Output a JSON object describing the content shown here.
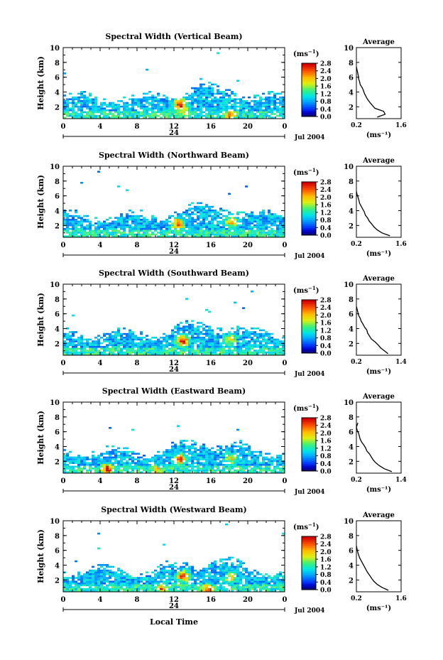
{
  "figure": {
    "month_label": "Jul 2004",
    "day_label": "24",
    "xlabel": "Local Time",
    "unit_label": "(ms",
    "unit_exp": "−1",
    "unit_close": ")"
  },
  "chart_data": [
    {
      "type": "heatmap",
      "title": "Spectral Width (Vertical Beam)",
      "xlabel": "Local Time",
      "ylabel": "Height (km)",
      "xlim": [
        0,
        24
      ],
      "ylim": [
        0.4,
        10
      ],
      "xticks": [
        0,
        4,
        8,
        12,
        16,
        20
      ],
      "yticks": [
        2,
        4,
        6,
        8,
        10
      ],
      "colorbar": {
        "ticks": [
          "0.0",
          "0.4",
          "0.8",
          "1.2",
          "1.6",
          "2.0",
          "2.4",
          "2.8"
        ],
        "range": [
          0,
          2.8
        ]
      },
      "hotspots": [
        {
          "t": 12.5,
          "h": 2.4,
          "v": 2.6
        },
        {
          "t": 18.0,
          "h": 1.0,
          "v": 2.3
        },
        {
          "t": 13.0,
          "h": 1.6,
          "v": 1.8
        }
      ],
      "average": {
        "title": "Average",
        "xlabel": "(ms⁻¹)",
        "xlim": [
          0.2,
          1.6
        ],
        "xticks": [
          "0.2",
          "1.6"
        ],
        "yticks": [
          2,
          4,
          6,
          8,
          10
        ],
        "profile": [
          [
            0.85,
            0.6
          ],
          [
            1.1,
            1.0
          ],
          [
            1.05,
            1.4
          ],
          [
            0.78,
            1.8
          ],
          [
            0.7,
            2.2
          ],
          [
            0.62,
            2.6
          ],
          [
            0.55,
            3.0
          ],
          [
            0.5,
            3.4
          ],
          [
            0.45,
            3.8
          ],
          [
            0.42,
            4.2
          ],
          [
            0.38,
            4.6
          ],
          [
            0.32,
            5.0
          ],
          [
            0.3,
            5.4
          ],
          [
            0.27,
            5.8
          ],
          [
            0.26,
            6.2
          ],
          [
            0.24,
            6.6
          ],
          [
            0.22,
            7.0
          ],
          [
            0.2,
            7.4
          ]
        ]
      }
    },
    {
      "type": "heatmap",
      "title": "Spectral Width (Northward Beam)",
      "xlabel": "Local Time",
      "ylabel": "Height (km)",
      "xlim": [
        0,
        24
      ],
      "ylim": [
        0.4,
        10
      ],
      "xticks": [
        0,
        4,
        8,
        12,
        16,
        20
      ],
      "yticks": [
        2,
        4,
        6,
        8,
        10
      ],
      "colorbar": {
        "ticks": [
          "0.0",
          "0.4",
          "0.8",
          "1.2",
          "1.6",
          "2.0",
          "2.4",
          "2.8"
        ],
        "range": [
          0,
          2.8
        ]
      },
      "hotspots": [
        {
          "t": 12.3,
          "h": 2.3,
          "v": 2.5
        },
        {
          "t": 18.0,
          "h": 2.6,
          "v": 1.9
        }
      ],
      "average": {
        "title": "Average",
        "xlabel": "(ms⁻¹)",
        "xlim": [
          0.2,
          1.6
        ],
        "xticks": [
          "0.2",
          "1.6"
        ],
        "yticks": [
          2,
          4,
          6,
          8,
          10
        ],
        "profile": [
          [
            1.25,
            0.6
          ],
          [
            1.0,
            1.0
          ],
          [
            0.85,
            1.4
          ],
          [
            0.75,
            1.8
          ],
          [
            0.68,
            2.2
          ],
          [
            0.6,
            2.6
          ],
          [
            0.55,
            3.0
          ],
          [
            0.48,
            3.4
          ],
          [
            0.45,
            3.8
          ],
          [
            0.4,
            4.2
          ],
          [
            0.35,
            4.6
          ],
          [
            0.3,
            5.0
          ],
          [
            0.28,
            5.4
          ],
          [
            0.25,
            5.8
          ],
          [
            0.22,
            6.2
          ],
          [
            0.2,
            6.6
          ]
        ]
      }
    },
    {
      "type": "heatmap",
      "title": "Spectral Width (Southward Beam)",
      "xlabel": "Local Time",
      "ylabel": "Height (km)",
      "xlim": [
        0,
        24
      ],
      "ylim": [
        0.4,
        10
      ],
      "xticks": [
        0,
        4,
        8,
        12,
        16,
        20
      ],
      "yticks": [
        2,
        4,
        6,
        8,
        10
      ],
      "colorbar": {
        "ticks": [
          "0.0",
          "0.4",
          "0.8",
          "1.2",
          "1.6",
          "2.0",
          "2.4",
          "2.8"
        ],
        "range": [
          0,
          2.8
        ]
      },
      "hotspots": [
        {
          "t": 12.8,
          "h": 2.5,
          "v": 2.6
        },
        {
          "t": 18.0,
          "h": 2.7,
          "v": 1.9
        }
      ],
      "average": {
        "title": "Average",
        "xlabel": "(ms⁻¹)",
        "xlim": [
          0.2,
          1.4
        ],
        "xticks": [
          "0.2",
          "1.4"
        ],
        "yticks": [
          2,
          4,
          6,
          8,
          10
        ],
        "profile": [
          [
            1.05,
            0.6
          ],
          [
            0.95,
            1.0
          ],
          [
            0.85,
            1.4
          ],
          [
            0.78,
            1.8
          ],
          [
            0.7,
            2.2
          ],
          [
            0.6,
            2.6
          ],
          [
            0.55,
            3.0
          ],
          [
            0.5,
            3.4
          ],
          [
            0.48,
            3.8
          ],
          [
            0.42,
            4.2
          ],
          [
            0.38,
            4.6
          ],
          [
            0.33,
            5.0
          ],
          [
            0.3,
            5.4
          ],
          [
            0.26,
            5.8
          ],
          [
            0.24,
            6.2
          ],
          [
            0.22,
            6.6
          ],
          [
            0.2,
            7.0
          ]
        ]
      }
    },
    {
      "type": "heatmap",
      "title": "Spectral Width (Eastward Beam)",
      "xlabel": "Local Time",
      "ylabel": "Height (km)",
      "xlim": [
        0,
        24
      ],
      "ylim": [
        0.4,
        10
      ],
      "xticks": [
        0,
        4,
        8,
        12,
        16,
        20
      ],
      "yticks": [
        2,
        4,
        6,
        8,
        10
      ],
      "colorbar": {
        "ticks": [
          "0.0",
          "0.4",
          "0.8",
          "1.2",
          "1.6",
          "2.0",
          "2.4",
          "2.8"
        ],
        "range": [
          0,
          2.8
        ]
      },
      "hotspots": [
        {
          "t": 4.6,
          "h": 1.0,
          "v": 2.7
        },
        {
          "t": 12.5,
          "h": 2.4,
          "v": 2.2
        },
        {
          "t": 18.0,
          "h": 2.5,
          "v": 1.7
        },
        {
          "t": 10.0,
          "h": 0.9,
          "v": 1.9
        }
      ],
      "average": {
        "title": "Average",
        "xlabel": "(ms⁻¹)",
        "xlim": [
          0.2,
          1.4
        ],
        "xticks": [
          "0.2",
          "1.4"
        ],
        "yticks": [
          2,
          4,
          6,
          8,
          10
        ],
        "profile": [
          [
            1.15,
            0.6
          ],
          [
            0.95,
            1.0
          ],
          [
            0.82,
            1.4
          ],
          [
            0.72,
            1.8
          ],
          [
            0.65,
            2.2
          ],
          [
            0.6,
            2.6
          ],
          [
            0.55,
            3.0
          ],
          [
            0.48,
            3.4
          ],
          [
            0.45,
            3.8
          ],
          [
            0.4,
            4.2
          ],
          [
            0.34,
            4.6
          ],
          [
            0.3,
            5.0
          ],
          [
            0.28,
            5.4
          ],
          [
            0.26,
            5.8
          ],
          [
            0.22,
            6.2
          ],
          [
            0.2,
            6.6
          ],
          [
            0.24,
            7.2
          ]
        ]
      }
    },
    {
      "type": "heatmap",
      "title": "Spectral Width (Westward Beam)",
      "xlabel": "Local Time",
      "ylabel": "Height (km)",
      "xlim": [
        0,
        24
      ],
      "ylim": [
        0.4,
        10
      ],
      "xticks": [
        0,
        4,
        8,
        12,
        16,
        20
      ],
      "yticks": [
        2,
        4,
        6,
        8,
        10
      ],
      "colorbar": {
        "ticks": [
          "0.0",
          "0.4",
          "0.8",
          "1.2",
          "1.6",
          "2.0",
          "2.4",
          "2.8"
        ],
        "range": [
          0,
          2.8
        ]
      },
      "hotspots": [
        {
          "t": 12.8,
          "h": 2.6,
          "v": 2.3
        },
        {
          "t": 15.5,
          "h": 0.9,
          "v": 2.2
        },
        {
          "t": 10.5,
          "h": 0.9,
          "v": 2.0
        },
        {
          "t": 18.0,
          "h": 2.4,
          "v": 1.7
        }
      ],
      "average": {
        "title": "Average",
        "xlabel": "(ms⁻¹)",
        "xlim": [
          0.2,
          1.6
        ],
        "xticks": [
          "0.2",
          "1.6"
        ],
        "yticks": [
          2,
          4,
          6,
          8,
          10
        ],
        "profile": [
          [
            1.2,
            0.6
          ],
          [
            1.0,
            1.0
          ],
          [
            0.85,
            1.4
          ],
          [
            0.75,
            1.8
          ],
          [
            0.68,
            2.2
          ],
          [
            0.62,
            2.6
          ],
          [
            0.55,
            3.0
          ],
          [
            0.5,
            3.4
          ],
          [
            0.45,
            3.8
          ],
          [
            0.4,
            4.2
          ],
          [
            0.35,
            4.6
          ],
          [
            0.3,
            5.0
          ],
          [
            0.27,
            5.4
          ],
          [
            0.24,
            5.8
          ],
          [
            0.22,
            6.2
          ],
          [
            0.2,
            6.6
          ]
        ]
      }
    }
  ]
}
